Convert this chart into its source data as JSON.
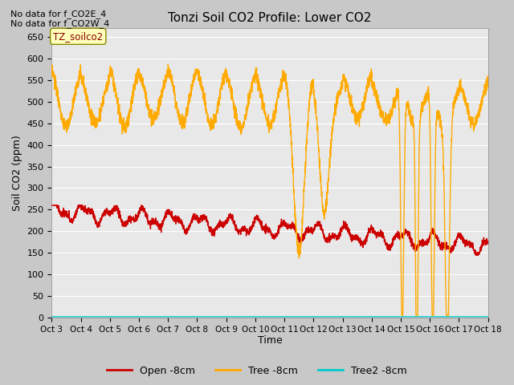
{
  "title": "Tonzi Soil CO2 Profile: Lower CO2",
  "ylabel": "Soil CO2 (ppm)",
  "xlabel": "Time",
  "ylim": [
    0,
    670
  ],
  "yticks": [
    0,
    50,
    100,
    150,
    200,
    250,
    300,
    350,
    400,
    450,
    500,
    550,
    600,
    650
  ],
  "no_data_text": [
    "No data for f_CO2E_4",
    "No data for f_CO2W_4"
  ],
  "legend_labels": [
    "Open -8cm",
    "Tree -8cm",
    "Tree2 -8cm"
  ],
  "legend_colors": [
    "#cc0000",
    "#ffaa00",
    "#00cccc"
  ],
  "tz_label": "TZ_soilco2",
  "fig_bg_color": "#c8c8c8",
  "plot_bg_color": "#e8e8e8",
  "grid_color": "#ffffff",
  "x_start": 3,
  "x_end": 18,
  "xtick_labels": [
    "Oct 3",
    "Oct 4",
    "Oct 5",
    "Oct 6",
    "Oct 7",
    "Oct 8",
    "Oct 9",
    "Oct 10",
    "Oct 11",
    "Oct 12",
    "Oct 13",
    "Oct 14",
    "Oct 15",
    "Oct 16",
    "Oct 17",
    "Oct 18"
  ],
  "xtick_positions": [
    3,
    4,
    5,
    6,
    7,
    8,
    9,
    10,
    11,
    12,
    13,
    14,
    15,
    16,
    17,
    18
  ]
}
